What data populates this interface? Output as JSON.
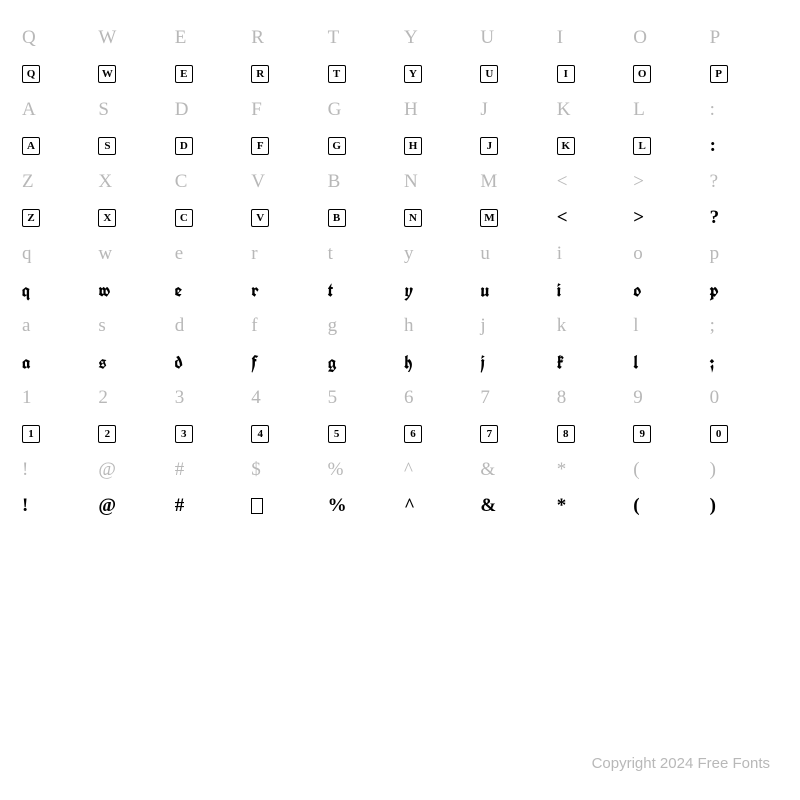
{
  "footer": "Copyright 2024 Free Fonts",
  "colors": {
    "reference": "#b8b8b8",
    "glyph": "#000000",
    "background": "#ffffff"
  },
  "typography": {
    "reference_fontsize": 19,
    "glyph_fontsize": 19,
    "footer_fontsize": 15
  },
  "rows": [
    {
      "type": "ref",
      "cells": [
        "Q",
        "W",
        "E",
        "R",
        "T",
        "Y",
        "U",
        "I",
        "O",
        "P"
      ]
    },
    {
      "type": "boxed",
      "cells": [
        "Q",
        "W",
        "E",
        "R",
        "T",
        "Y",
        "U",
        "I",
        "O",
        "P"
      ]
    },
    {
      "type": "ref",
      "cells": [
        "A",
        "S",
        "D",
        "F",
        "G",
        "H",
        "J",
        "K",
        "L",
        ":"
      ]
    },
    {
      "type": "mixed",
      "cells": [
        {
          "kind": "boxed",
          "v": "A"
        },
        {
          "kind": "boxed",
          "v": "S"
        },
        {
          "kind": "boxed",
          "v": "D"
        },
        {
          "kind": "boxed",
          "v": "F"
        },
        {
          "kind": "boxed",
          "v": "G"
        },
        {
          "kind": "boxed",
          "v": "H"
        },
        {
          "kind": "boxed",
          "v": "J"
        },
        {
          "kind": "boxed",
          "v": "K"
        },
        {
          "kind": "boxed",
          "v": "L"
        },
        {
          "kind": "plain",
          "v": ":"
        }
      ]
    },
    {
      "type": "ref",
      "cells": [
        "Z",
        "X",
        "C",
        "V",
        "B",
        "N",
        "M",
        "<",
        ">",
        "?"
      ]
    },
    {
      "type": "mixed",
      "cells": [
        {
          "kind": "boxed",
          "v": "Z"
        },
        {
          "kind": "boxed",
          "v": "X"
        },
        {
          "kind": "boxed",
          "v": "C"
        },
        {
          "kind": "boxed",
          "v": "V"
        },
        {
          "kind": "boxed",
          "v": "B"
        },
        {
          "kind": "boxed",
          "v": "N"
        },
        {
          "kind": "boxed",
          "v": "M"
        },
        {
          "kind": "plain",
          "v": "<"
        },
        {
          "kind": "plain",
          "v": ">"
        },
        {
          "kind": "plain",
          "v": "?"
        }
      ]
    },
    {
      "type": "ref",
      "cells": [
        "q",
        "w",
        "e",
        "r",
        "t",
        "y",
        "u",
        "i",
        "o",
        "p"
      ]
    },
    {
      "type": "glyph",
      "cells": [
        "q",
        "w",
        "e",
        "r",
        "t",
        "y",
        "u",
        "i",
        "o",
        "p"
      ]
    },
    {
      "type": "ref",
      "cells": [
        "a",
        "s",
        "d",
        "f",
        "g",
        "h",
        "j",
        "k",
        "l",
        ";"
      ]
    },
    {
      "type": "glyph",
      "cells": [
        "a",
        "s",
        "d",
        "f",
        "g",
        "h",
        "j",
        "k",
        "l",
        ";"
      ]
    },
    {
      "type": "ref",
      "cells": [
        "1",
        "2",
        "3",
        "4",
        "5",
        "6",
        "7",
        "8",
        "9",
        "0"
      ]
    },
    {
      "type": "boxed",
      "cells": [
        "1",
        "2",
        "3",
        "4",
        "5",
        "6",
        "7",
        "8",
        "9",
        "0"
      ]
    },
    {
      "type": "ref",
      "cells": [
        "!",
        "@",
        "#",
        "$",
        "%",
        "^",
        "&",
        "*",
        "(",
        ")"
      ]
    },
    {
      "type": "mixed",
      "cells": [
        {
          "kind": "plain",
          "v": "!"
        },
        {
          "kind": "plain",
          "v": "@"
        },
        {
          "kind": "plain",
          "v": "#"
        },
        {
          "kind": "empty",
          "v": ""
        },
        {
          "kind": "plain",
          "v": "%"
        },
        {
          "kind": "plain",
          "v": "^"
        },
        {
          "kind": "plain",
          "v": "&"
        },
        {
          "kind": "plain",
          "v": "*"
        },
        {
          "kind": "plain",
          "v": "("
        },
        {
          "kind": "plain",
          "v": ")"
        }
      ]
    }
  ]
}
